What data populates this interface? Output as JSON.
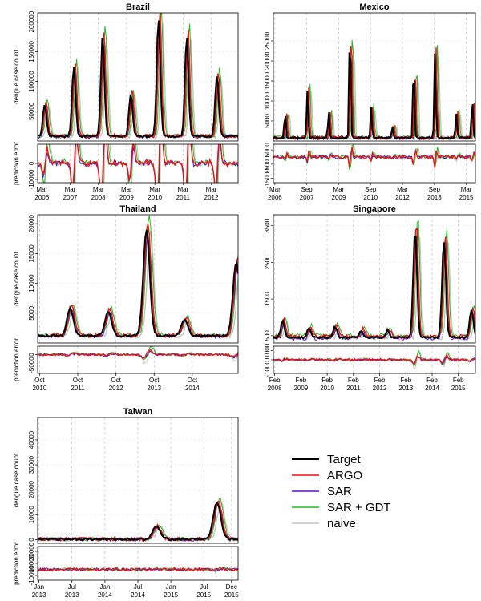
{
  "legend": [
    {
      "name": "Target",
      "color": "#000000"
    },
    {
      "name": "ARGO",
      "color": "#ee1111"
    },
    {
      "name": "SAR",
      "color": "#5511cc"
    },
    {
      "name": "SAR + GDT",
      "color": "#22bb22"
    },
    {
      "name": "naive",
      "color": "#c4c4c4"
    }
  ],
  "chart_data": [
    {
      "title": "Brazil",
      "type": "line",
      "ylabel": "dengue case count",
      "ylabel2": "prediction error",
      "ylim": [
        0,
        215000
      ],
      "yticks": [
        50000,
        100000,
        150000,
        200000
      ],
      "ylim2": [
        -12000,
        12000
      ],
      "yticks2": [
        -10000,
        0
      ],
      "xrange": [
        2006.0,
        2013.1
      ],
      "xtick_labels": [
        [
          "Mar",
          "2006"
        ],
        [
          "Mar",
          "2007"
        ],
        [
          "Mar",
          "2008"
        ],
        [
          "Mar",
          "2009"
        ],
        [
          "Mar",
          "2010"
        ],
        [
          "Mar",
          "2011"
        ],
        [
          "Mar",
          "2012"
        ]
      ],
      "xtick_pos": [
        2006.15,
        2007.15,
        2008.15,
        2009.15,
        2010.15,
        2011.15,
        2012.15
      ],
      "peaks": [
        [
          2006.25,
          62000
        ],
        [
          2007.28,
          125000
        ],
        [
          2008.3,
          175000
        ],
        [
          2009.3,
          80000
        ],
        [
          2010.28,
          205000
        ],
        [
          2011.28,
          175000
        ],
        [
          2012.35,
          110000
        ]
      ],
      "base": 8000,
      "width": 0.09,
      "tail": 30000
    },
    {
      "title": "Mexico",
      "type": "line",
      "ylabel": "",
      "ylabel2": "",
      "ylim": [
        0,
        32000
      ],
      "yticks": [
        5000,
        10000,
        15000,
        20000,
        25000
      ],
      "ylim2": [
        -18000,
        9000
      ],
      "yticks2": [
        -15000,
        -5000,
        5000
      ],
      "xrange": [
        2006.1,
        2015.6
      ],
      "xtick_labels": [
        [
          "Mar",
          "2006"
        ],
        [
          "Sep",
          "2007"
        ],
        [
          "Mar",
          "2009"
        ],
        [
          "Sep",
          "2010"
        ],
        [
          "Mar",
          "2012"
        ],
        [
          "Sep",
          "2013"
        ],
        [
          "Mar",
          "2015"
        ]
      ],
      "xtick_pos": [
        2006.17,
        2007.67,
        2009.17,
        2010.67,
        2012.17,
        2013.67,
        2015.17
      ],
      "peaks": [
        [
          2006.65,
          7500
        ],
        [
          2007.7,
          12500
        ],
        [
          2008.7,
          7500
        ],
        [
          2009.7,
          31000
        ],
        [
          2010.7,
          8500
        ],
        [
          2011.7,
          4000
        ],
        [
          2012.7,
          21000
        ],
        [
          2013.7,
          23000
        ],
        [
          2014.7,
          7000
        ],
        [
          2015.45,
          11000
        ]
      ],
      "base": 800,
      "width": 0.05,
      "tail": 0
    },
    {
      "title": "Thailand",
      "type": "line",
      "ylabel": "dengue case count",
      "ylabel2": "prediction error",
      "ylim": [
        0,
        21500
      ],
      "yticks": [
        5000,
        10000,
        15000,
        20000
      ],
      "ylim2": [
        -9000,
        4000
      ],
      "yticks2": [
        -5000,
        0
      ],
      "xrange": [
        2010.7,
        2015.95
      ],
      "xtick_labels": [
        [
          "Oct",
          "2010"
        ],
        [
          "Oct",
          "2011"
        ],
        [
          "Oct",
          "2012"
        ],
        [
          "Oct",
          "2013"
        ],
        [
          "Oct",
          "2014"
        ]
      ],
      "xtick_pos": [
        2010.75,
        2011.75,
        2012.75,
        2013.75,
        2014.75
      ],
      "peaks": [
        [
          2011.55,
          5800
        ],
        [
          2012.55,
          5300
        ],
        [
          2013.55,
          19000
        ],
        [
          2014.55,
          4000
        ],
        [
          2015.9,
          13500
        ]
      ],
      "base": 1200,
      "width": 0.12,
      "tail": 0
    },
    {
      "title": "Singapore",
      "type": "line",
      "ylabel": "",
      "ylabel2": "",
      "ylim": [
        300,
        3800
      ],
      "yticks": [
        500,
        1500,
        2500,
        3500
      ],
      "ylim2": [
        -1500,
        1500
      ],
      "yticks2": [
        -1000,
        0,
        1000
      ],
      "xrange": [
        2008.05,
        2015.75
      ],
      "xtick_labels": [
        [
          "Feb",
          "2008"
        ],
        [
          "Feb",
          "2009"
        ],
        [
          "Feb",
          "2010"
        ],
        [
          "Feb",
          "2011"
        ],
        [
          "Feb",
          "2012"
        ],
        [
          "Feb",
          "2013"
        ],
        [
          "Feb",
          "2014"
        ],
        [
          "Feb",
          "2015"
        ]
      ],
      "xtick_pos": [
        2008.1,
        2009.1,
        2010.1,
        2011.1,
        2012.1,
        2013.1,
        2014.1,
        2015.1
      ],
      "peaks": [
        [
          2008.4,
          900
        ],
        [
          2009.4,
          700
        ],
        [
          2010.4,
          750
        ],
        [
          2011.4,
          650
        ],
        [
          2012.4,
          650
        ],
        [
          2013.45,
          3400
        ],
        [
          2014.55,
          3100
        ],
        [
          2015.6,
          1200
        ]
      ],
      "base": 450,
      "width": 0.1,
      "tail": 0
    },
    {
      "title": "Taiwan",
      "type": "line",
      "ylabel": "dengue case count",
      "ylabel2": "prediction error",
      "ylim": [
        -1500,
        49000
      ],
      "yticks": [
        0,
        10000,
        20000,
        30000,
        40000
      ],
      "ylim2": [
        -18000,
        38000
      ],
      "yticks2": [
        -10000,
        10000,
        30000
      ],
      "xrange": [
        2012.98,
        2016.02
      ],
      "xtick_labels": [
        [
          "Jan",
          "2013"
        ],
        [
          "Jul",
          "2013"
        ],
        [
          "Jan",
          "2014"
        ],
        [
          "Jul",
          "2014"
        ],
        [
          "Jan",
          "2015"
        ],
        [
          "Jul",
          "2015"
        ],
        [
          "Dec",
          "2015"
        ]
      ],
      "xtick_pos": [
        2013.0,
        2013.5,
        2014.0,
        2014.5,
        2015.0,
        2015.5,
        2015.92
      ],
      "peaks": [
        [
          2014.78,
          5200
        ],
        [
          2015.7,
          15000
        ]
      ],
      "base": 150,
      "width": 0.08,
      "tail": 0
    }
  ]
}
